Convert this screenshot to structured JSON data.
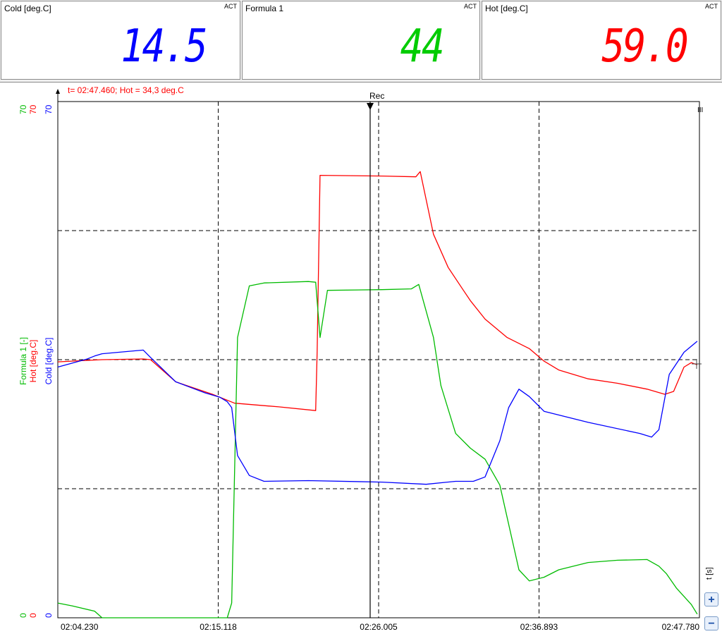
{
  "panels": [
    {
      "title": "Cold [deg.C]",
      "badge": "ACT",
      "value": "14.5",
      "color": "#0000ff"
    },
    {
      "title": "Formula 1",
      "badge": "ACT",
      "value": "44",
      "color": "#00cc00"
    },
    {
      "title": "Hot [deg.C]",
      "badge": "ACT",
      "value": "59.0",
      "color": "#ff0000"
    }
  ],
  "cursor_readout": "t= 02:47.460; Hot = 34,3 deg.C",
  "rec_label": "Rec",
  "time_axis_unit": "t [s]",
  "zoom_in": "+",
  "zoom_out": "−",
  "chart_data": {
    "type": "line",
    "x_unit": "time",
    "x_ticks": [
      "02:04.230",
      "02:15.118",
      "02:26.005",
      "02:36.893",
      "02:47.780"
    ],
    "xlim": [
      0,
      43.55
    ],
    "cursor_time": 21.2,
    "y_axes": [
      {
        "label": "Formula 1 [-]",
        "color": "#00bb00",
        "min": "0",
        "max": "70"
      },
      {
        "label": "Hot [deg.C]",
        "color": "#ff0000",
        "min": "0",
        "max": "70"
      },
      {
        "label": "Cold [deg.C]",
        "color": "#0000ff",
        "min": "0",
        "max": "70"
      }
    ],
    "ylim": [
      0,
      70
    ],
    "grid": true,
    "series": [
      {
        "name": "Hot [deg.C]",
        "color": "#ff0000",
        "x": [
          0,
          2,
          3,
          5.8,
          6.3,
          8,
          10.5,
          12,
          15,
          17.5,
          17.6,
          17.8,
          22,
          24.3,
          24.6,
          25.5,
          26.5,
          27.5,
          28,
          29,
          30.5,
          32,
          33,
          34,
          36,
          38,
          40,
          41.2,
          41.8,
          42.5,
          43,
          43.4
        ],
        "y": [
          34.7,
          34.9,
          35.0,
          35.1,
          35.0,
          32.0,
          30.3,
          29.1,
          28.6,
          28.1,
          36,
          60.0,
          59.9,
          59.8,
          60.5,
          52,
          47.5,
          44.5,
          43.0,
          40.5,
          38,
          36.5,
          34.8,
          33.6,
          32.4,
          31.8,
          31.0,
          30.3,
          30.7,
          34.0,
          34.6,
          34.3
        ]
      },
      {
        "name": "Formula 1 [-]",
        "color": "#00bb00",
        "x": [
          0,
          1,
          2.5,
          3,
          5.5,
          6,
          9,
          11,
          11.5,
          11.8,
          12.2,
          13,
          14,
          17,
          17.5,
          17.8,
          18.3,
          22,
          24,
          24.5,
          25.5,
          26,
          27,
          28,
          29,
          30,
          31.3,
          32,
          33,
          34,
          36,
          38,
          40,
          40.8,
          41.3,
          42,
          43,
          43.4
        ],
        "y": [
          2.0,
          1.6,
          0.9,
          0,
          0,
          0,
          0,
          0,
          0,
          2.0,
          38,
          45,
          45.4,
          45.6,
          45.5,
          38,
          44.4,
          44.5,
          44.6,
          45.2,
          38,
          31.5,
          25.0,
          23.0,
          21.5,
          18.0,
          6.5,
          5.0,
          5.5,
          6.5,
          7.5,
          7.8,
          7.9,
          7.0,
          6.0,
          4.0,
          1.8,
          0.5
        ]
      },
      {
        "name": "Cold [deg.C]",
        "color": "#0000ff",
        "x": [
          0,
          2,
          2.5,
          3,
          5.8,
          6.3,
          8,
          10,
          11,
          11.5,
          11.8,
          12.2,
          13,
          14,
          17,
          22,
          25,
          27,
          28.2,
          29,
          30,
          30.6,
          31.3,
          32,
          33,
          36,
          39.5,
          40.3,
          40.8,
          41.5,
          42.5,
          43.4
        ],
        "y": [
          34.0,
          35.1,
          35.5,
          35.8,
          36.3,
          35.3,
          32.0,
          30.5,
          29.9,
          29.3,
          28.5,
          22.0,
          19.3,
          18.5,
          18.6,
          18.4,
          18.1,
          18.5,
          18.5,
          19.1,
          24.0,
          28.5,
          31.0,
          30.0,
          28.0,
          26.5,
          25.0,
          24.5,
          25.5,
          33.0,
          36.0,
          37.5
        ]
      }
    ]
  }
}
